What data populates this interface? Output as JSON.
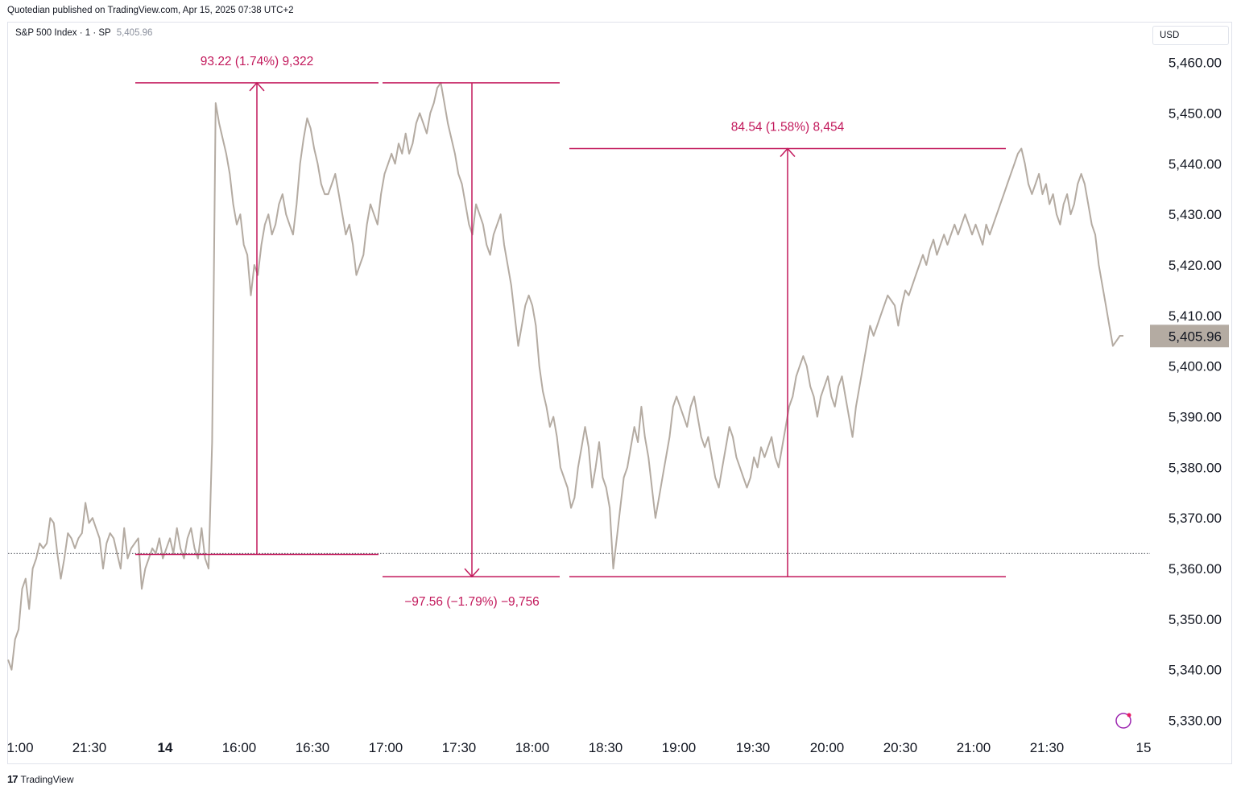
{
  "header": {
    "published": "Quotedian published on TradingView.com, Apr 15, 2025 07:38 UTC+2"
  },
  "legend": {
    "symbol": "S&P 500 Index · 1 · SP",
    "value": "5,405.96"
  },
  "currency": "USD",
  "footer": {
    "brand": "TradingView",
    "logo": "tradingview-logo-icon"
  },
  "colors": {
    "price_line": "#b4aba2",
    "measure": "#c2185b",
    "last_price_badge": "#b4aba2"
  },
  "chart_data": {
    "type": "line",
    "series": [
      {
        "values": [
          5342,
          5340,
          5346,
          5348,
          5356,
          5358,
          5352,
          5360,
          5362,
          5365,
          5364,
          5365,
          5370,
          5369,
          5363,
          5358,
          5362,
          5367,
          5366,
          5364,
          5366,
          5367,
          5373,
          5369,
          5370,
          5368,
          5366,
          5360,
          5365,
          5367,
          5366,
          5363,
          5360,
          5368,
          5362,
          5364,
          5365,
          5366,
          5356,
          5360,
          5362,
          5364,
          5363,
          5366,
          5362,
          5364,
          5366,
          5363,
          5368,
          5364,
          5362,
          5366,
          5368,
          5364,
          5362,
          5368,
          5362,
          5360,
          5385,
          5452,
          5448,
          5445,
          5442,
          5438,
          5432,
          5428,
          5430,
          5424,
          5422,
          5414,
          5420,
          5418,
          5424,
          5428,
          5430,
          5426,
          5428,
          5432,
          5434,
          5430,
          5428,
          5426,
          5432,
          5440,
          5445,
          5449,
          5447,
          5443,
          5440,
          5436,
          5434,
          5434,
          5436,
          5438,
          5434,
          5430,
          5426,
          5428,
          5424,
          5418,
          5420,
          5422,
          5428,
          5432,
          5430,
          5428,
          5434,
          5438,
          5440,
          5442,
          5440,
          5444,
          5442,
          5446,
          5442,
          5444,
          5448,
          5450,
          5448,
          5446,
          5450,
          5452,
          5455,
          5456,
          5452,
          5448,
          5445,
          5442,
          5438,
          5436,
          5432,
          5428,
          5426,
          5432,
          5430,
          5428,
          5424,
          5422,
          5426,
          5428,
          5430,
          5424,
          5420,
          5416,
          5410,
          5404,
          5408,
          5412,
          5414,
          5412,
          5408,
          5400,
          5395,
          5392,
          5388,
          5390,
          5386,
          5380,
          5378,
          5376,
          5372,
          5374,
          5380,
          5384,
          5388,
          5384,
          5376,
          5380,
          5385,
          5378,
          5376,
          5372,
          5360,
          5366,
          5372,
          5378,
          5380,
          5384,
          5388,
          5385,
          5392,
          5386,
          5382,
          5376,
          5370,
          5374,
          5378,
          5382,
          5386,
          5392,
          5394,
          5392,
          5390,
          5388,
          5392,
          5394,
          5390,
          5386,
          5384,
          5386,
          5382,
          5378,
          5376,
          5380,
          5384,
          5388,
          5386,
          5382,
          5380,
          5378,
          5376,
          5378,
          5382,
          5380,
          5384,
          5382,
          5384,
          5386,
          5382,
          5380,
          5384,
          5388,
          5392,
          5394,
          5398,
          5400,
          5402,
          5400,
          5396,
          5394,
          5390,
          5394,
          5396,
          5398,
          5394,
          5392,
          5396,
          5398,
          5394,
          5390,
          5386,
          5392,
          5396,
          5400,
          5404,
          5408,
          5406,
          5408,
          5410,
          5412,
          5414,
          5413,
          5412,
          5408,
          5412,
          5415,
          5414,
          5416,
          5418,
          5420,
          5422,
          5420,
          5423,
          5425,
          5422,
          5424,
          5426,
          5424,
          5426,
          5428,
          5426,
          5428,
          5430,
          5428,
          5426,
          5428,
          5426,
          5424,
          5428,
          5426,
          5428,
          5430,
          5432,
          5434,
          5436,
          5438,
          5440,
          5442,
          5443,
          5440,
          5436,
          5434,
          5436,
          5438,
          5434,
          5436,
          5432,
          5434,
          5430,
          5428,
          5432,
          5434,
          5430,
          5432,
          5436,
          5438,
          5436,
          5432,
          5428,
          5426,
          5420,
          5416,
          5412,
          5408,
          5404,
          5405,
          5406,
          5406
        ]
      }
    ],
    "ylim": [
      5325,
      5466
    ],
    "y_ticks": [
      "5,460.00",
      "5,450.00",
      "5,440.00",
      "5,430.00",
      "5,420.00",
      "5,410.00",
      "5,400.00",
      "5,390.00",
      "5,380.00",
      "5,370.00",
      "5,360.00",
      "5,350.00",
      "5,340.00",
      "5,330.00"
    ],
    "x_ticks": [
      {
        "label": "1:00",
        "bold": false
      },
      {
        "label": "21:30",
        "bold": false
      },
      {
        "label": "14",
        "bold": true
      },
      {
        "label": "16:00",
        "bold": false
      },
      {
        "label": "16:30",
        "bold": false
      },
      {
        "label": "17:00",
        "bold": false
      },
      {
        "label": "17:30",
        "bold": false
      },
      {
        "label": "18:00",
        "bold": false
      },
      {
        "label": "18:30",
        "bold": false
      },
      {
        "label": "19:00",
        "bold": false
      },
      {
        "label": "19:30",
        "bold": false
      },
      {
        "label": "20:00",
        "bold": false
      },
      {
        "label": "20:30",
        "bold": false
      },
      {
        "label": "21:00",
        "bold": false
      },
      {
        "label": "21:30",
        "bold": false
      },
      {
        "label": "15",
        "bold": false
      }
    ],
    "last_price": 5405.96,
    "last_price_label": "5,405.96",
    "reference_price": 5363,
    "measurements": [
      {
        "label": "93.22 (1.74%) 9,322",
        "from": 5362.8,
        "to": 5456.0,
        "direction": "up"
      },
      {
        "label": "−97.56 (−1.79%) −9,756",
        "from": 5456.0,
        "to": 5358.4,
        "direction": "down"
      },
      {
        "label": "84.54 (1.58%) 8,454",
        "from": 5358.4,
        "to": 5443.0,
        "direction": "up"
      }
    ]
  }
}
